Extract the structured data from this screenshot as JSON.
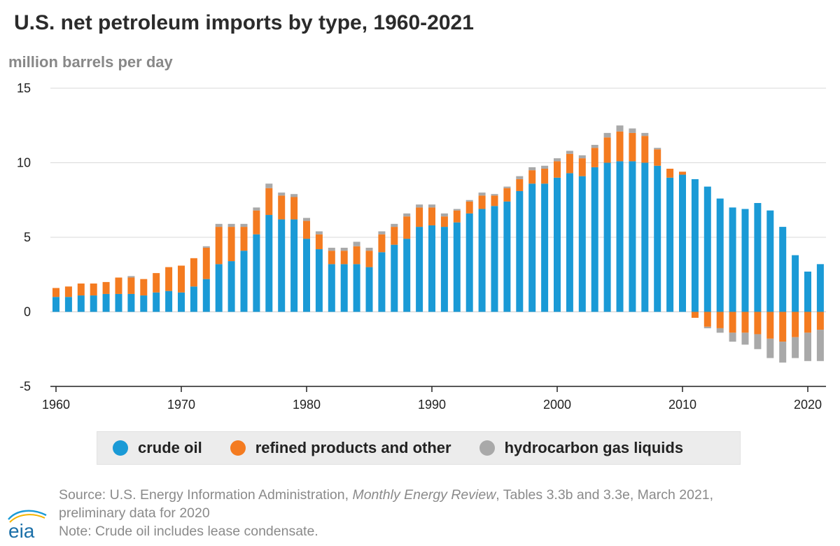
{
  "header": {
    "title": "U.S. net petroleum imports by type, 1960-2021",
    "y_unit": "million barrels per day"
  },
  "legend": {
    "crude": "crude oil",
    "refined": "refined products and other",
    "hgl": "hydrocarbon gas liquids"
  },
  "source": {
    "prefix": "Source: U.S. Energy Information Administration, ",
    "publication": "Monthly Energy Review",
    "suffix": ", Tables 3.3b and 3.3e, March 2021,",
    "line2": "preliminary data for 2020",
    "note": "Note: Crude oil includes lease condensate."
  },
  "logo": {
    "text": "eia"
  },
  "colors": {
    "crude": "#1a9ad6",
    "refined": "#f47b20",
    "hgl": "#a9a9a9",
    "grid": "#d9d9d9",
    "axis": "#222222"
  },
  "chart_data": {
    "type": "bar",
    "stacked": true,
    "title": "U.S. net petroleum imports by type, 1960-2021",
    "ylabel": "million barrels per day",
    "xlabel": "",
    "ylim": [
      -5,
      15
    ],
    "yticks": [
      -5,
      0,
      5,
      10,
      15
    ],
    "xticks": [
      1960,
      1970,
      1980,
      1990,
      2000,
      2010,
      2020
    ],
    "grid": true,
    "legend_position": "bottom",
    "categories": [
      1960,
      1961,
      1962,
      1963,
      1964,
      1965,
      1966,
      1967,
      1968,
      1969,
      1970,
      1971,
      1972,
      1973,
      1974,
      1975,
      1976,
      1977,
      1978,
      1979,
      1980,
      1981,
      1982,
      1983,
      1984,
      1985,
      1986,
      1987,
      1988,
      1989,
      1990,
      1991,
      1992,
      1993,
      1994,
      1995,
      1996,
      1997,
      1998,
      1999,
      2000,
      2001,
      2002,
      2003,
      2004,
      2005,
      2006,
      2007,
      2008,
      2009,
      2010,
      2011,
      2012,
      2013,
      2014,
      2015,
      2016,
      2017,
      2018,
      2019,
      2020,
      2021
    ],
    "series": [
      {
        "name": "crude oil",
        "color": "#1a9ad6",
        "values": [
          1.0,
          1.0,
          1.1,
          1.1,
          1.2,
          1.2,
          1.2,
          1.1,
          1.3,
          1.4,
          1.3,
          1.7,
          2.2,
          3.2,
          3.4,
          4.1,
          5.2,
          6.5,
          6.2,
          6.2,
          4.9,
          4.2,
          3.2,
          3.2,
          3.2,
          3.0,
          4.0,
          4.5,
          4.9,
          5.7,
          5.8,
          5.7,
          6.0,
          6.6,
          6.9,
          7.1,
          7.4,
          8.1,
          8.6,
          8.6,
          9.0,
          9.3,
          9.1,
          9.7,
          10.0,
          10.1,
          10.1,
          10.0,
          9.8,
          9.0,
          9.2,
          8.9,
          8.4,
          7.6,
          7.0,
          6.9,
          7.3,
          6.8,
          5.7,
          3.8,
          2.7,
          3.2
        ]
      },
      {
        "name": "refined products and other",
        "color": "#f47b20",
        "values": [
          0.6,
          0.7,
          0.8,
          0.8,
          0.8,
          1.1,
          1.1,
          1.1,
          1.3,
          1.6,
          1.8,
          1.9,
          2.1,
          2.5,
          2.3,
          1.6,
          1.6,
          1.8,
          1.6,
          1.5,
          1.2,
          1.0,
          0.9,
          0.9,
          1.2,
          1.1,
          1.2,
          1.2,
          1.5,
          1.3,
          1.2,
          0.7,
          0.8,
          0.8,
          0.9,
          0.7,
          0.9,
          0.8,
          0.9,
          1.0,
          1.1,
          1.3,
          1.2,
          1.3,
          1.7,
          2.0,
          1.9,
          1.8,
          1.1,
          0.6,
          0.2,
          -0.4,
          -1.0,
          -1.1,
          -1.4,
          -1.4,
          -1.5,
          -1.8,
          -2.0,
          -1.7,
          -1.4,
          -1.2
        ]
      },
      {
        "name": "hydrocarbon gas liquids",
        "color": "#a9a9a9",
        "values": [
          0.0,
          0.0,
          0.0,
          0.0,
          0.0,
          0.0,
          0.1,
          0.0,
          0.0,
          0.0,
          0.0,
          0.0,
          0.1,
          0.2,
          0.2,
          0.2,
          0.2,
          0.3,
          0.2,
          0.2,
          0.2,
          0.2,
          0.2,
          0.2,
          0.3,
          0.2,
          0.2,
          0.2,
          0.2,
          0.2,
          0.2,
          0.2,
          0.1,
          0.1,
          0.2,
          0.1,
          0.1,
          0.2,
          0.2,
          0.2,
          0.2,
          0.2,
          0.2,
          0.2,
          0.3,
          0.4,
          0.3,
          0.2,
          0.1,
          0.0,
          0.0,
          0.0,
          -0.1,
          -0.3,
          -0.6,
          -0.8,
          -1.0,
          -1.3,
          -1.4,
          -1.4,
          -1.9,
          -2.1
        ]
      }
    ]
  }
}
